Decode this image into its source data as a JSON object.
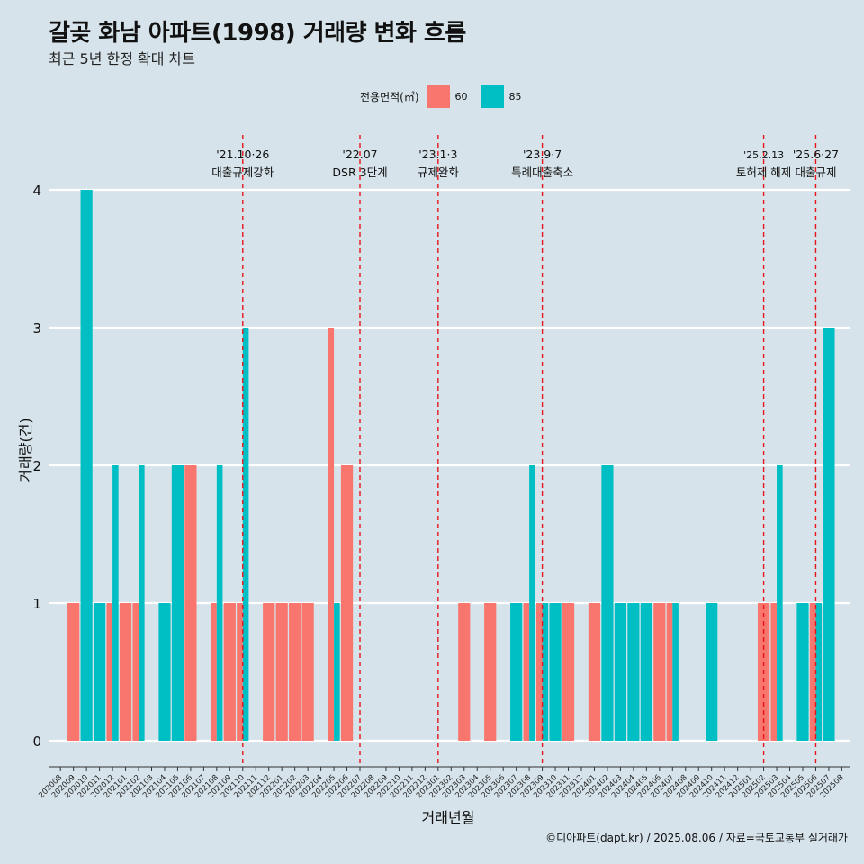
{
  "header": {
    "title": "갈곶 화남 아파트(1998) 거래량 변화 흐름",
    "subtitle": "최근 5년 한정 확대 차트"
  },
  "legend": {
    "title": "전용면적(㎡)",
    "items": [
      {
        "label": "60",
        "color": "#f8766d"
      },
      {
        "label": "85",
        "color": "#00bfc4"
      }
    ]
  },
  "caption": "©디아파트(dapt.kr) / 2025.08.06 / 자료=국토교통부 실거래가",
  "chart_data": {
    "type": "bar",
    "xlabel": "거래년월",
    "ylabel": "거래량(건)",
    "ylim": [
      0,
      4
    ],
    "yticks": [
      0,
      1,
      2,
      3,
      4
    ],
    "grid": "horizontal major lines only",
    "legend_position": "top",
    "categories": [
      "202008",
      "202009",
      "202010",
      "202011",
      "202012",
      "202101",
      "202102",
      "202103",
      "202104",
      "202105",
      "202106",
      "202107",
      "202108",
      "202109",
      "202110",
      "202111",
      "202112",
      "202201",
      "202202",
      "202203",
      "202204",
      "202205",
      "202206",
      "202207",
      "202208",
      "202209",
      "202210",
      "202211",
      "202212",
      "202301",
      "202302",
      "202303",
      "202304",
      "202305",
      "202306",
      "202307",
      "202308",
      "202309",
      "202310",
      "202311",
      "202312",
      "202401",
      "202402",
      "202403",
      "202404",
      "202405",
      "202406",
      "202407",
      "202408",
      "202409",
      "202410",
      "202411",
      "202412",
      "202501",
      "202502",
      "202503",
      "202504",
      "202505",
      "202506",
      "202507",
      "202508"
    ],
    "series": [
      {
        "name": "60",
        "color": "#f8766d",
        "values": [
          0,
          1,
          0,
          0,
          1,
          1,
          1,
          0,
          0,
          0,
          2,
          0,
          1,
          1,
          1,
          0,
          1,
          1,
          1,
          1,
          0,
          3,
          2,
          0,
          0,
          0,
          0,
          0,
          0,
          0,
          0,
          1,
          0,
          1,
          0,
          0,
          1,
          1,
          0,
          1,
          0,
          1,
          0,
          0,
          0,
          0,
          1,
          1,
          0,
          0,
          0,
          0,
          0,
          0,
          1,
          1,
          0,
          0,
          1,
          0,
          0
        ]
      },
      {
        "name": "85",
        "color": "#00bfc4",
        "values": [
          0,
          0,
          4,
          1,
          2,
          0,
          2,
          0,
          1,
          2,
          0,
          0,
          2,
          0,
          3,
          0,
          0,
          0,
          0,
          0,
          0,
          1,
          0,
          0,
          0,
          0,
          0,
          0,
          0,
          0,
          0,
          0,
          0,
          0,
          0,
          1,
          2,
          1,
          1,
          0,
          0,
          0,
          2,
          1,
          1,
          1,
          0,
          1,
          0,
          0,
          1,
          0,
          0,
          0,
          0,
          2,
          0,
          1,
          1,
          3,
          0
        ]
      }
    ],
    "annotations": [
      {
        "at": "202110",
        "date": "'21.10·26",
        "label": "대출규제강화"
      },
      {
        "at": "202207",
        "date": "'22.07",
        "label": "DSR 3단계"
      },
      {
        "at": "202301",
        "date": "'23.1·3",
        "label": "규제완화"
      },
      {
        "at": "202309",
        "date": "'23.9·7",
        "label": "특례대출축소"
      },
      {
        "at": "202502",
        "date": "'25.2.13",
        "label": "토허제 해제"
      },
      {
        "at": "202506",
        "date": "'25.6·27",
        "label": "대출규제"
      }
    ]
  }
}
